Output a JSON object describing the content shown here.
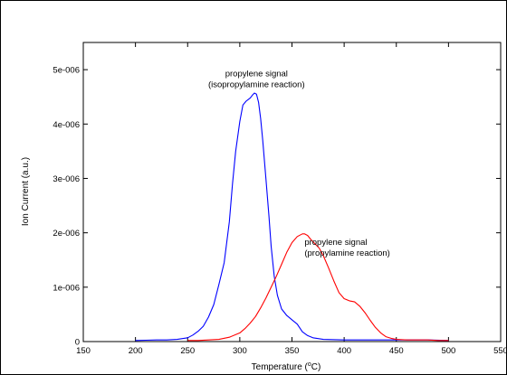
{
  "chart_data": {
    "type": "line",
    "xlabel": "Temperature (",
    "xlabel_sup": "o",
    "xlabel_unit": "C)",
    "ylabel": "Ion Current (a.u.)",
    "xlim": [
      150,
      550
    ],
    "ylim": [
      0,
      5.5e-06
    ],
    "x_ticks": [
      150,
      200,
      250,
      300,
      350,
      400,
      450,
      500,
      550
    ],
    "x_tick_labels": [
      "150",
      "200",
      "250",
      "300",
      "350",
      "400",
      "450",
      "500",
      "550"
    ],
    "y_ticks": [
      0,
      1e-06,
      2e-06,
      3e-06,
      4e-06,
      5e-06
    ],
    "y_tick_labels": [
      "0",
      "1e-006",
      "2e-006",
      "3e-006",
      "4e-006",
      "5e-006"
    ],
    "grid": false,
    "annotations": [
      {
        "lines": [
          "propylene signal",
          "(isopropylamine reaction)"
        ],
        "x": 316,
        "y": 4.88e-06,
        "anchor": "middle"
      },
      {
        "lines": [
          "propylene signal",
          "(propylamine reaction)"
        ],
        "x": 362,
        "y": 1.78e-06,
        "anchor": "start"
      }
    ],
    "series": [
      {
        "color": "#0000ff",
        "x": [
          200,
          210,
          220,
          230,
          240,
          250,
          255,
          260,
          265,
          270,
          275,
          280,
          285,
          290,
          293,
          296,
          300,
          303,
          306,
          308,
          310,
          312,
          314,
          316,
          318,
          320,
          322,
          325,
          328,
          330,
          333,
          336,
          340,
          345,
          350,
          355,
          360,
          365,
          370,
          380,
          400,
          420,
          450,
          480,
          500
        ],
        "y": [
          2e-08,
          2.5e-08,
          3e-08,
          3e-08,
          4e-08,
          7e-08,
          1.2e-07,
          1.9e-07,
          2.8e-07,
          4.5e-07,
          6.8e-07,
          1.05e-06,
          1.45e-06,
          2.2e-06,
          2.9e-06,
          3.5e-06,
          4.05e-06,
          4.35e-06,
          4.42e-06,
          4.45e-06,
          4.48e-06,
          4.53e-06,
          4.57e-06,
          4.55e-06,
          4.4e-06,
          4.1e-06,
          3.7e-06,
          3e-06,
          2.3e-06,
          1.75e-06,
          1.2e-06,
          8.5e-07,
          6e-07,
          4.8e-07,
          4e-07,
          3.2e-07,
          1.8e-07,
          1.1e-07,
          7e-08,
          4e-08,
          3e-08,
          3e-08,
          3e-08,
          3e-08,
          2e-08
        ]
      },
      {
        "color": "#ff0000",
        "x": [
          250,
          260,
          270,
          280,
          290,
          300,
          305,
          310,
          315,
          320,
          325,
          330,
          335,
          340,
          345,
          350,
          355,
          360,
          362,
          365,
          368,
          372,
          376,
          380,
          385,
          390,
          395,
          400,
          405,
          410,
          415,
          420,
          425,
          430,
          435,
          440,
          445,
          450,
          460,
          470,
          480,
          490,
          500
        ],
        "y": [
          2e-08,
          2e-08,
          3e-08,
          4e-08,
          8e-08,
          1.6e-07,
          2.4e-07,
          3.4e-07,
          4.6e-07,
          6.2e-07,
          8e-07,
          1e-06,
          1.2e-06,
          1.42e-06,
          1.64e-06,
          1.82e-06,
          1.93e-06,
          1.98e-06,
          1.98e-06,
          1.95e-06,
          1.88e-06,
          1.8e-06,
          1.72e-06,
          1.58e-06,
          1.36e-06,
          1.12e-06,
          9e-07,
          7.9e-07,
          7.5e-07,
          7.3e-07,
          6.5e-07,
          5.3e-07,
          3.9e-07,
          2.6e-07,
          1.6e-07,
          9e-08,
          6e-08,
          4e-08,
          3e-08,
          3e-08,
          3e-08,
          2e-08,
          2e-08
        ]
      }
    ]
  }
}
